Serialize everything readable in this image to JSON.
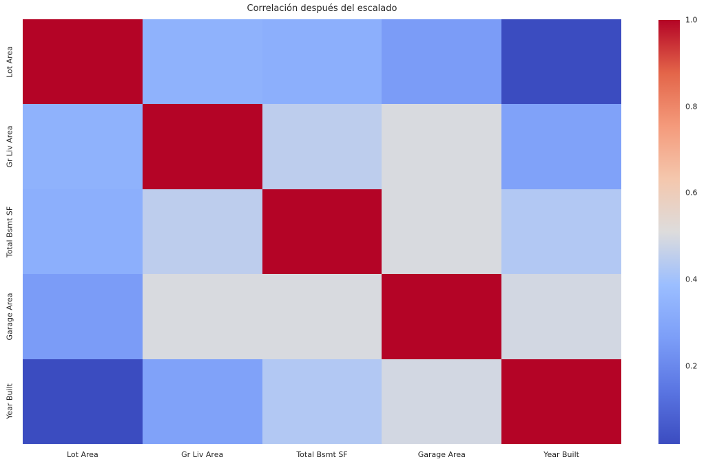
{
  "title": "Correlación después del escalado",
  "chart_data": {
    "type": "heatmap",
    "title": "Correlación después del escalado",
    "categories": [
      "Lot Area",
      "Gr Liv Area",
      "Total Bsmt SF",
      "Garage Area",
      "Year Built"
    ],
    "matrix": [
      [
        1.0,
        0.34,
        0.33,
        0.26,
        0.02
      ],
      [
        0.34,
        1.0,
        0.45,
        0.5,
        0.28
      ],
      [
        0.33,
        0.45,
        1.0,
        0.5,
        0.43
      ],
      [
        0.26,
        0.5,
        0.5,
        1.0,
        0.49
      ],
      [
        0.02,
        0.28,
        0.43,
        0.49,
        1.0
      ]
    ],
    "colormap": "coolwarm",
    "vmin": 0.02,
    "vmax": 1.0,
    "grid": false,
    "legend_position": "right-colorbar",
    "colorbar": {
      "tick_labels": [
        "1.0",
        "0.8",
        "0.6",
        "0.4",
        "0.2"
      ],
      "tick_values": [
        1.0,
        0.8,
        0.6,
        0.4,
        0.2
      ]
    }
  },
  "colors": {
    "background": "#ffffff",
    "text": "#262626",
    "cmap_min_blue": "#3b4cc0",
    "cmap_mid_gray": "#dddcdc",
    "cmap_max_red": "#b40426"
  }
}
